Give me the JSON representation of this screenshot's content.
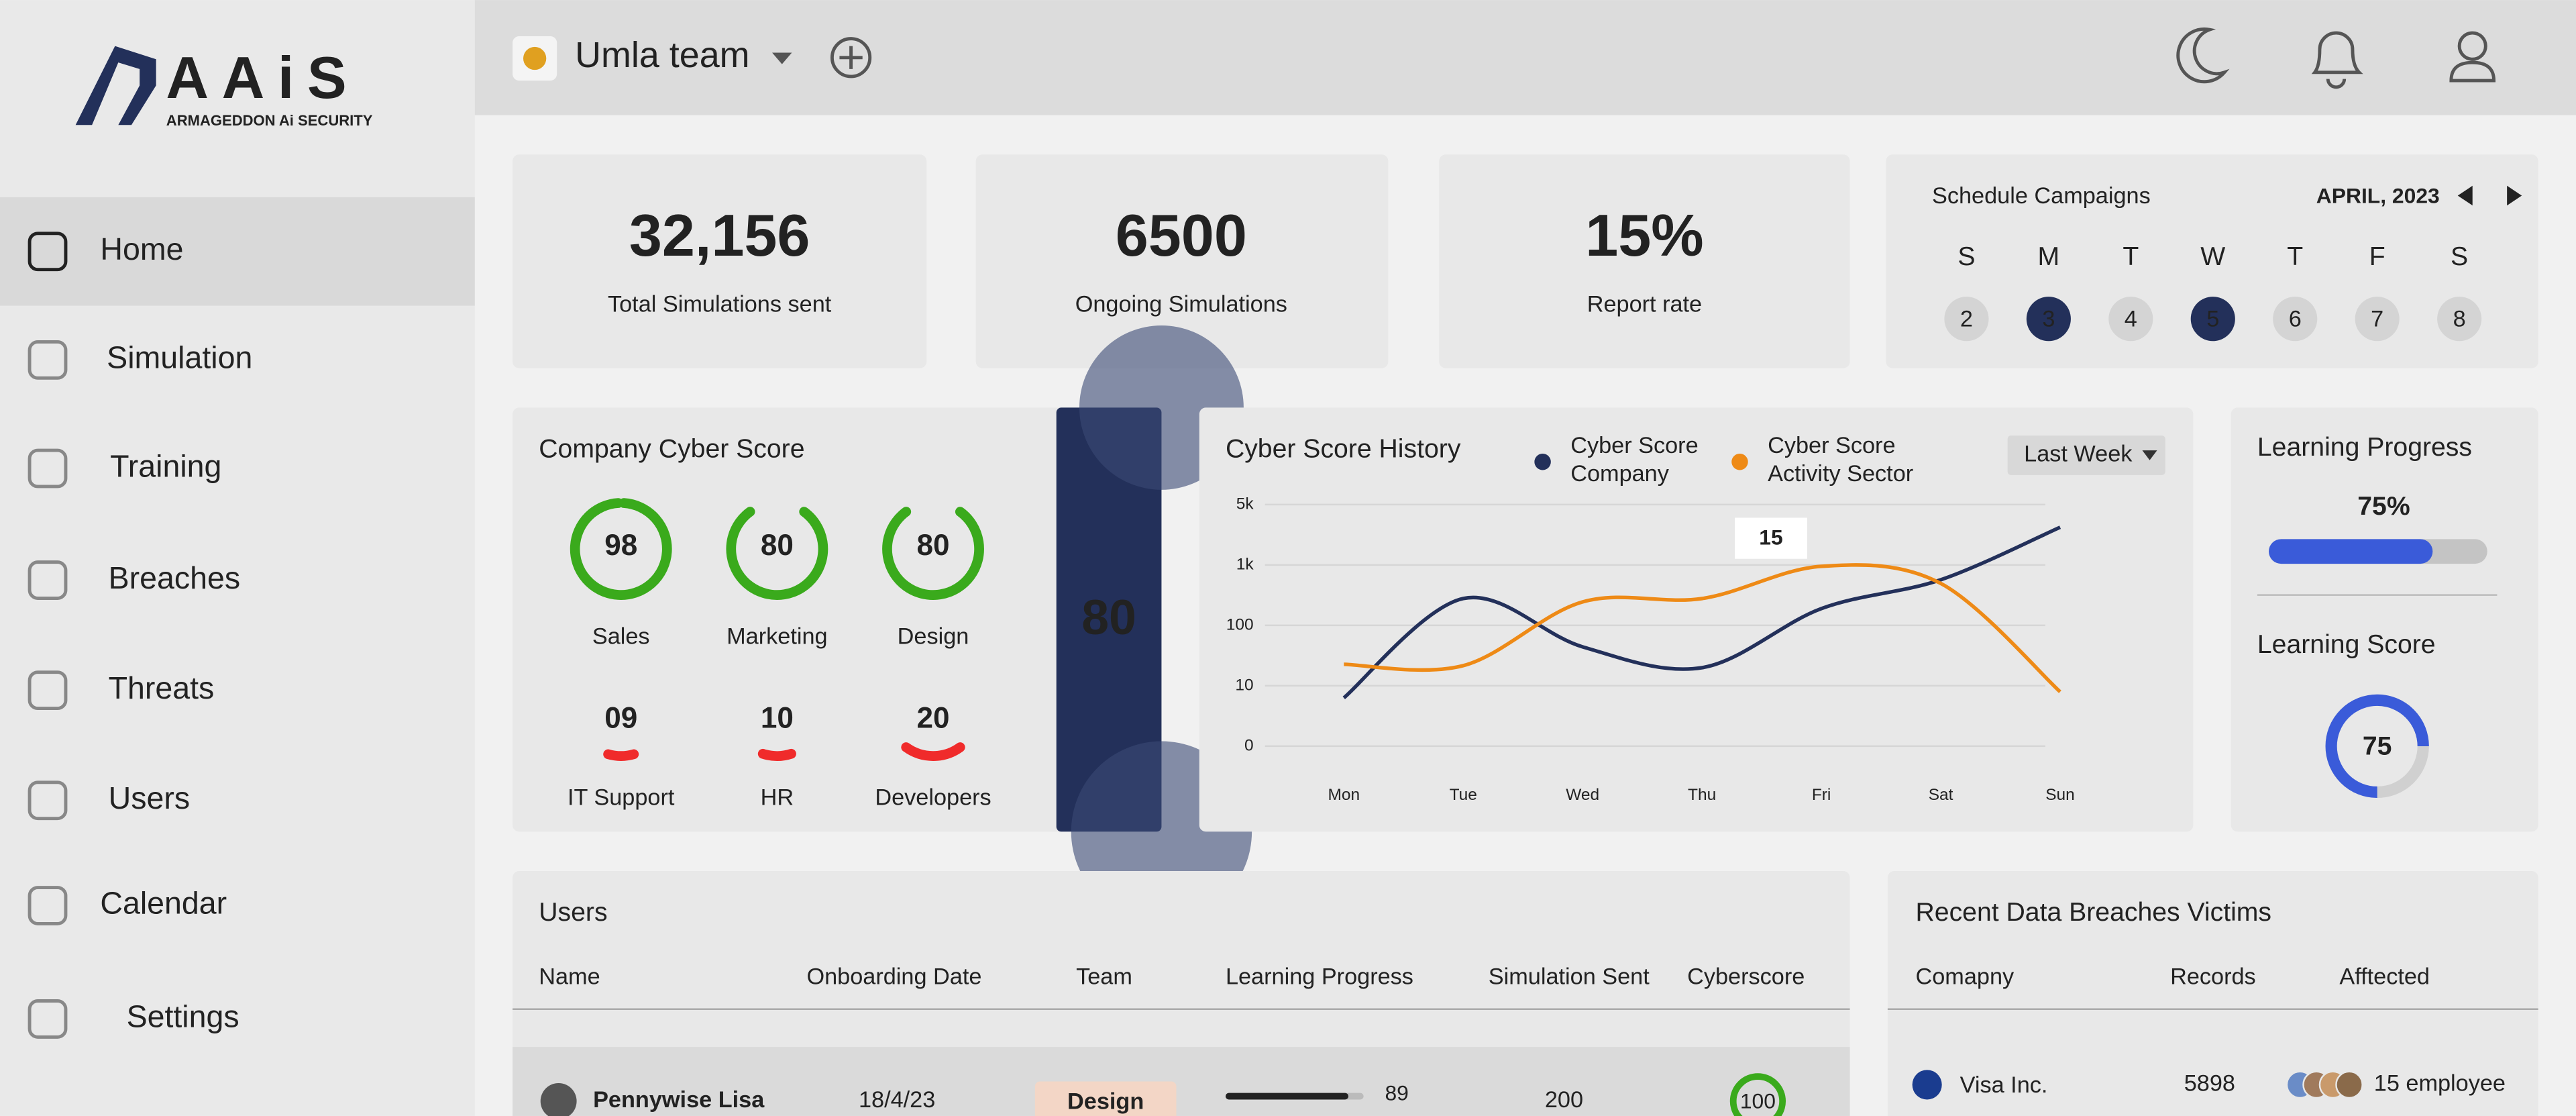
{
  "sidebar": {
    "logo": "AAiS",
    "logo_tagline": "ARMAGEDDON Ai SECURITY",
    "nav": [
      "Home",
      "Simulation",
      "Training",
      "Breaches",
      "Threats",
      "Users",
      "Calendar",
      "Settings"
    ],
    "active": 0
  },
  "header": {
    "team": "Umla team"
  },
  "stats": [
    {
      "value": "32,156",
      "label": "Total Simulations sent"
    },
    {
      "value": "6500",
      "label": "Ongoing Simulations"
    },
    {
      "value": "15%",
      "label": "Report rate"
    }
  ],
  "calendar": {
    "title": "Schedule Campaigns",
    "month": "APRIL, 2023",
    "weekdays": [
      "S",
      "M",
      "T",
      "W",
      "T",
      "F",
      "S"
    ],
    "dates": [
      "2",
      "3",
      "4",
      "5",
      "6",
      "7",
      "8"
    ],
    "highlighted": [
      1,
      3
    ]
  },
  "cyber_score": {
    "title": "Company Cyber Score",
    "overall": 80,
    "departments": [
      {
        "name": "Sales",
        "score": 98,
        "color": "#3aaa1c"
      },
      {
        "name": "Marketing",
        "score": 80,
        "color": "#3aaa1c"
      },
      {
        "name": "Design",
        "score": 80,
        "color": "#3aaa1c"
      },
      {
        "name": "IT Support",
        "score": 9,
        "score_label": "09",
        "color": "#f02b2b"
      },
      {
        "name": "HR",
        "score": 10,
        "color": "#f02b2b"
      },
      {
        "name": "Developers",
        "score": 20,
        "color": "#f02b2b"
      }
    ]
  },
  "history": {
    "title": "Cyber Score History",
    "filter": "Last Week",
    "type": "line",
    "x": [
      "Mon",
      "Tue",
      "Wed",
      "Thu",
      "Fri",
      "Sat",
      "Sun"
    ],
    "ylim": [
      0,
      5000
    ],
    "yticks": [
      0,
      10,
      100,
      {
        "value": 1000,
        "label": "1k"
      },
      {
        "value": 5000,
        "label": "5k"
      }
    ],
    "series": [
      {
        "name": "Cyber Score Company",
        "color": "#23305a",
        "values": [
          8,
          500,
          68,
          37,
          350,
          780,
          3500
        ]
      },
      {
        "name": "Cyber Score Activity Sector",
        "color": "#ee8a16",
        "values": [
          42,
          40,
          450,
          500,
          980,
          725,
          9
        ]
      }
    ],
    "annotation": "15"
  },
  "learning": {
    "progress_title": "Learning Progress",
    "progress": 75,
    "progress_label": "75%",
    "score_title": "Learning Score",
    "score": 75
  },
  "users": {
    "title": "Users",
    "columns": [
      "Name",
      "Onboarding Date",
      "Team",
      "Learning Progress",
      "Simulation Sent",
      "Cyberscore"
    ],
    "rows": [
      {
        "name": "Pennywise Lisa",
        "date": "18/4/23",
        "team": "Design",
        "progress": 89,
        "sent": 200,
        "cyberscore": 100
      }
    ]
  },
  "breaches": {
    "title": "Recent Data Breaches Victims",
    "columns": [
      "Comapny",
      "Records",
      "Afftected"
    ],
    "rows": [
      {
        "company": "Visa Inc.",
        "records": 5898,
        "affected": "15 employee"
      }
    ]
  }
}
